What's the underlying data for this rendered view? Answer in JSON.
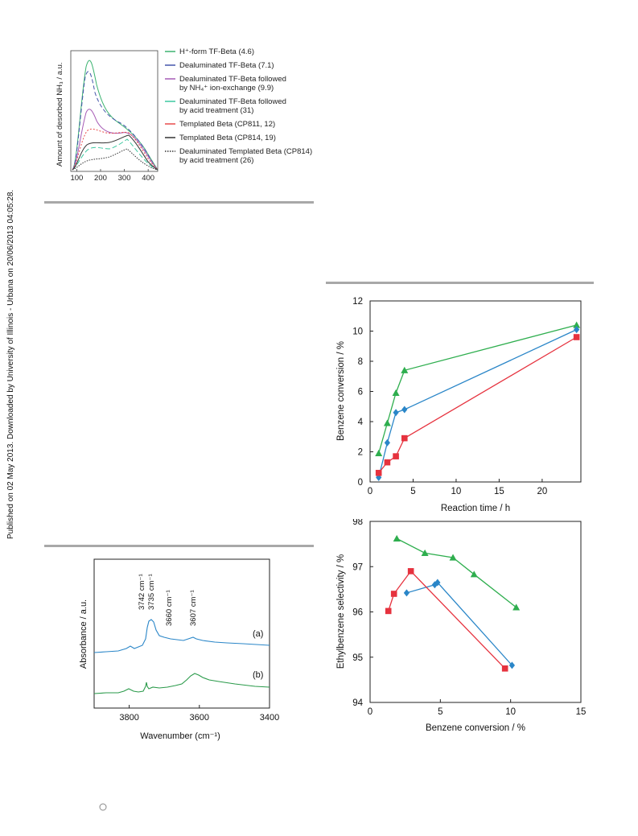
{
  "sidebar_note": "Published on 02 May 2013. Downloaded by University of Illinois - Urbana on 20/06/2013 04:05:28.",
  "tpd_chart": {
    "chart_data": {
      "type": "line",
      "ylabel": "Amount of desorbed NH₃ / a.u.",
      "xlabel": "",
      "x_ticks": [
        "100",
        "200",
        "300",
        "400"
      ],
      "legend": [
        {
          "label": "H⁺-form TF-Beta (4.6)",
          "color": "#3cb371",
          "style": "solid"
        },
        {
          "label": "Dealuminated TF-Beta (7.1)",
          "color": "#4455aa",
          "style": "solid"
        },
        {
          "label": "Dealuminated TF-Beta followed\nby NH₄⁺ ion-exchange (9.9)",
          "color": "#a65bb5",
          "style": "solid"
        },
        {
          "label": "Dealuminated TF-Beta followed\nby acid treatment (31)",
          "color": "#3cc8a0",
          "style": "solid"
        },
        {
          "label": "Templated Beta (CP811, 12)",
          "color": "#e94b4b",
          "style": "solid"
        },
        {
          "label": "Templated Beta (CP814, 19)",
          "color": "#333333",
          "style": "solid"
        },
        {
          "label": "Dealuminated Templated Beta (CP814)\nby acid treatment (26)",
          "color": "#333333",
          "style": "dotted"
        }
      ]
    }
  },
  "ir_chart": {
    "chart_data": {
      "type": "line",
      "xlabel": "Wavenumber (cm⁻¹)",
      "ylabel": "Absorbance / a.u.",
      "xlim": [
        3900,
        3400
      ],
      "x_ticks": [
        "3800",
        "3600",
        "3400"
      ],
      "peak_labels": [
        "3742 cm⁻¹",
        "3735 cm⁻¹",
        "3660 cm⁻¹",
        "3607 cm⁻¹"
      ],
      "series": [
        {
          "name": "(a)",
          "color": "#2a86c8"
        },
        {
          "name": "(b)",
          "color": "#2a9a4a"
        }
      ]
    }
  },
  "conversion_chart": {
    "chart_data": {
      "type": "line",
      "xlabel": "Reaction time / h",
      "ylabel": "Benzene conversion / %",
      "xlim": [
        0,
        24.5
      ],
      "ylim": [
        0,
        12
      ],
      "x_ticks": [
        0,
        5,
        10,
        15,
        20
      ],
      "y_ticks": [
        0,
        2,
        4,
        6,
        8,
        10,
        12
      ],
      "series": [
        {
          "marker": "triangle",
          "color": "#2eae4e",
          "x": [
            1,
            2,
            3,
            4,
            24
          ],
          "y": [
            1.9,
            3.9,
            5.9,
            7.4,
            10.4
          ]
        },
        {
          "marker": "diamond",
          "color": "#2a86c8",
          "x": [
            1,
            2,
            3,
            4,
            24
          ],
          "y": [
            0.3,
            2.6,
            4.6,
            4.8,
            10.1
          ]
        },
        {
          "marker": "square",
          "color": "#e6323e",
          "x": [
            1,
            2,
            3,
            4,
            24
          ],
          "y": [
            0.6,
            1.3,
            1.7,
            2.9,
            9.6
          ]
        }
      ]
    }
  },
  "selectivity_chart": {
    "chart_data": {
      "type": "line",
      "xlabel": "Benzene conversion / %",
      "ylabel": "Ethylbenzene selectivity / %",
      "xlim": [
        0,
        15
      ],
      "ylim": [
        94,
        98
      ],
      "x_ticks": [
        0,
        5,
        10,
        15
      ],
      "y_ticks": [
        94,
        95,
        96,
        97,
        98
      ],
      "series": [
        {
          "marker": "triangle",
          "color": "#2eae4e",
          "x": [
            1.9,
            3.9,
            5.9,
            7.4,
            10.4
          ],
          "y": [
            97.62,
            97.3,
            97.2,
            96.83,
            96.1
          ]
        },
        {
          "marker": "diamond",
          "color": "#2a86c8",
          "x": [
            2.6,
            4.6,
            4.8,
            10.1
          ],
          "y": [
            96.42,
            96.6,
            96.65,
            94.82
          ]
        },
        {
          "marker": "square",
          "color": "#e6323e",
          "x": [
            1.3,
            1.7,
            2.9,
            9.6
          ],
          "y": [
            96.02,
            96.4,
            96.9,
            94.75
          ]
        }
      ]
    }
  }
}
